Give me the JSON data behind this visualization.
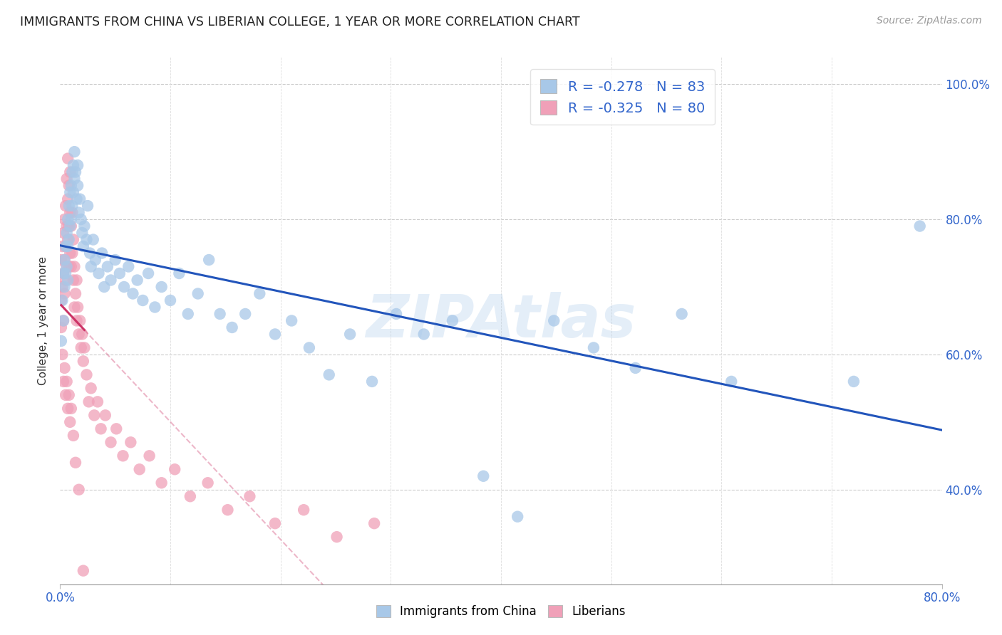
{
  "title": "IMMIGRANTS FROM CHINA VS LIBERIAN COLLEGE, 1 YEAR OR MORE CORRELATION CHART",
  "source": "Source: ZipAtlas.com",
  "ylabel": "College, 1 year or more",
  "xmin": 0.0,
  "xmax": 0.8,
  "ymin": 0.26,
  "ymax": 1.04,
  "china_color": "#a8c8e8",
  "china_line_color": "#2255bb",
  "liberia_color": "#f0a0b8",
  "liberia_line_color": "#cc3366",
  "china_R": -0.278,
  "china_N": 83,
  "liberia_R": -0.325,
  "liberia_N": 80,
  "watermark": "ZIPAtlas",
  "legend_label_china": "Immigrants from China",
  "legend_label_liberia": "Liberians",
  "xtick_positions": [
    0.0,
    0.8
  ],
  "xtick_labels": [
    "0.0%",
    "80.0%"
  ],
  "ytick_positions": [
    0.4,
    0.6,
    0.8,
    1.0
  ],
  "ytick_labels": [
    "40.0%",
    "60.0%",
    "80.0%",
    "100.0%"
  ],
  "china_scatter_x": [
    0.001,
    0.002,
    0.003,
    0.003,
    0.004,
    0.004,
    0.005,
    0.005,
    0.006,
    0.006,
    0.007,
    0.007,
    0.007,
    0.008,
    0.008,
    0.009,
    0.009,
    0.01,
    0.01,
    0.011,
    0.011,
    0.012,
    0.012,
    0.013,
    0.013,
    0.014,
    0.015,
    0.016,
    0.016,
    0.017,
    0.018,
    0.019,
    0.02,
    0.021,
    0.022,
    0.024,
    0.025,
    0.027,
    0.028,
    0.03,
    0.032,
    0.035,
    0.038,
    0.04,
    0.043,
    0.046,
    0.05,
    0.054,
    0.058,
    0.062,
    0.066,
    0.07,
    0.075,
    0.08,
    0.086,
    0.092,
    0.1,
    0.108,
    0.116,
    0.125,
    0.135,
    0.145,
    0.156,
    0.168,
    0.181,
    0.195,
    0.21,
    0.226,
    0.244,
    0.263,
    0.283,
    0.305,
    0.33,
    0.356,
    0.384,
    0.415,
    0.448,
    0.484,
    0.522,
    0.564,
    0.609,
    0.72,
    0.78
  ],
  "china_scatter_y": [
    0.62,
    0.68,
    0.65,
    0.72,
    0.74,
    0.7,
    0.76,
    0.72,
    0.78,
    0.73,
    0.8,
    0.76,
    0.71,
    0.82,
    0.77,
    0.84,
    0.79,
    0.85,
    0.8,
    0.87,
    0.82,
    0.88,
    0.84,
    0.9,
    0.86,
    0.87,
    0.83,
    0.88,
    0.85,
    0.81,
    0.83,
    0.8,
    0.78,
    0.76,
    0.79,
    0.77,
    0.82,
    0.75,
    0.73,
    0.77,
    0.74,
    0.72,
    0.75,
    0.7,
    0.73,
    0.71,
    0.74,
    0.72,
    0.7,
    0.73,
    0.69,
    0.71,
    0.68,
    0.72,
    0.67,
    0.7,
    0.68,
    0.72,
    0.66,
    0.69,
    0.74,
    0.66,
    0.64,
    0.66,
    0.69,
    0.63,
    0.65,
    0.61,
    0.57,
    0.63,
    0.56,
    0.66,
    0.63,
    0.65,
    0.42,
    0.36,
    0.65,
    0.61,
    0.58,
    0.66,
    0.56,
    0.56,
    0.79
  ],
  "liberia_scatter_x": [
    0.001,
    0.001,
    0.002,
    0.002,
    0.003,
    0.003,
    0.003,
    0.004,
    0.004,
    0.004,
    0.005,
    0.005,
    0.005,
    0.006,
    0.006,
    0.006,
    0.007,
    0.007,
    0.007,
    0.008,
    0.008,
    0.008,
    0.009,
    0.009,
    0.009,
    0.01,
    0.01,
    0.011,
    0.011,
    0.012,
    0.012,
    0.013,
    0.013,
    0.014,
    0.015,
    0.015,
    0.016,
    0.017,
    0.018,
    0.019,
    0.02,
    0.021,
    0.022,
    0.024,
    0.026,
    0.028,
    0.031,
    0.034,
    0.037,
    0.041,
    0.046,
    0.051,
    0.057,
    0.064,
    0.072,
    0.081,
    0.092,
    0.104,
    0.118,
    0.134,
    0.152,
    0.172,
    0.195,
    0.221,
    0.251,
    0.285,
    0.001,
    0.002,
    0.003,
    0.004,
    0.005,
    0.006,
    0.007,
    0.008,
    0.009,
    0.01,
    0.012,
    0.014,
    0.017,
    0.021
  ],
  "liberia_scatter_y": [
    0.68,
    0.74,
    0.7,
    0.76,
    0.72,
    0.78,
    0.65,
    0.74,
    0.69,
    0.8,
    0.76,
    0.71,
    0.82,
    0.79,
    0.73,
    0.86,
    0.83,
    0.77,
    0.89,
    0.85,
    0.79,
    0.73,
    0.87,
    0.81,
    0.75,
    0.79,
    0.73,
    0.81,
    0.75,
    0.77,
    0.71,
    0.73,
    0.67,
    0.69,
    0.71,
    0.65,
    0.67,
    0.63,
    0.65,
    0.61,
    0.63,
    0.59,
    0.61,
    0.57,
    0.53,
    0.55,
    0.51,
    0.53,
    0.49,
    0.51,
    0.47,
    0.49,
    0.45,
    0.47,
    0.43,
    0.45,
    0.41,
    0.43,
    0.39,
    0.41,
    0.37,
    0.39,
    0.35,
    0.37,
    0.33,
    0.35,
    0.64,
    0.6,
    0.56,
    0.58,
    0.54,
    0.56,
    0.52,
    0.54,
    0.5,
    0.52,
    0.48,
    0.44,
    0.4,
    0.28
  ]
}
